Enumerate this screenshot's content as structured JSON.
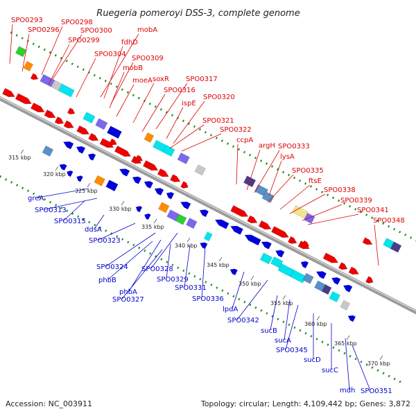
{
  "title": "Ruegeria pomeroyi DSS-3, complete genome",
  "footer": {
    "accession": "Accession: NC_003911",
    "summary": "Topology: circular; Length: 4,109,442 bp; Genes: 3,872"
  },
  "colors": {
    "forward": "#ee0000",
    "reverse": "#0000dd",
    "backbone": "#888888",
    "dots": "#228b22",
    "cyan": "#00e5ee",
    "steel": "#5b8fc7",
    "violet": "#7b68ee",
    "orange": "#ff8c00",
    "grey": "#c8c8c8",
    "khaki": "#f0e68c",
    "slate": "#483d8b",
    "green": "#2fcf2f"
  },
  "labels_top": [
    "SPO0293",
    "SPO0298",
    "SPO0296",
    "SPO0300",
    "SPO0299",
    "mobA",
    "fdhD",
    "SPO0304",
    "SPO0309",
    "mobB",
    "soxR",
    "moeA",
    "SPO0317",
    "SPO0316",
    "ispE",
    "SPO0320",
    "SPO0321",
    "SPO0322",
    "ccpA",
    "argH",
    "SPO0333",
    "lysA",
    "SPO0335",
    "ftsE",
    "SPO0338",
    "SPO0339",
    "SPO0341",
    "SPO0348"
  ],
  "labels_bottom": [
    "greA",
    "SPO0313",
    "SPO0315",
    "ddsA",
    "SPO0323",
    "SPO0324",
    "phbB",
    "SPO0328",
    "SPO0329",
    "phbA",
    "SPO0327",
    "SPO0331",
    "SPO0336",
    "lpdA",
    "SPO0342",
    "sucB",
    "sucA",
    "SPO0345",
    "sucD",
    "sucC",
    "mdh",
    "SPO0351"
  ],
  "ticks": [
    "315 kbp",
    "320 kbp",
    "325 kbp",
    "330 kbp",
    "335 kbp",
    "340 kbp",
    "345 kbp",
    "350 kbp",
    "355 kbp",
    "360 kbp",
    "365 kbp",
    "370 kbp"
  ]
}
